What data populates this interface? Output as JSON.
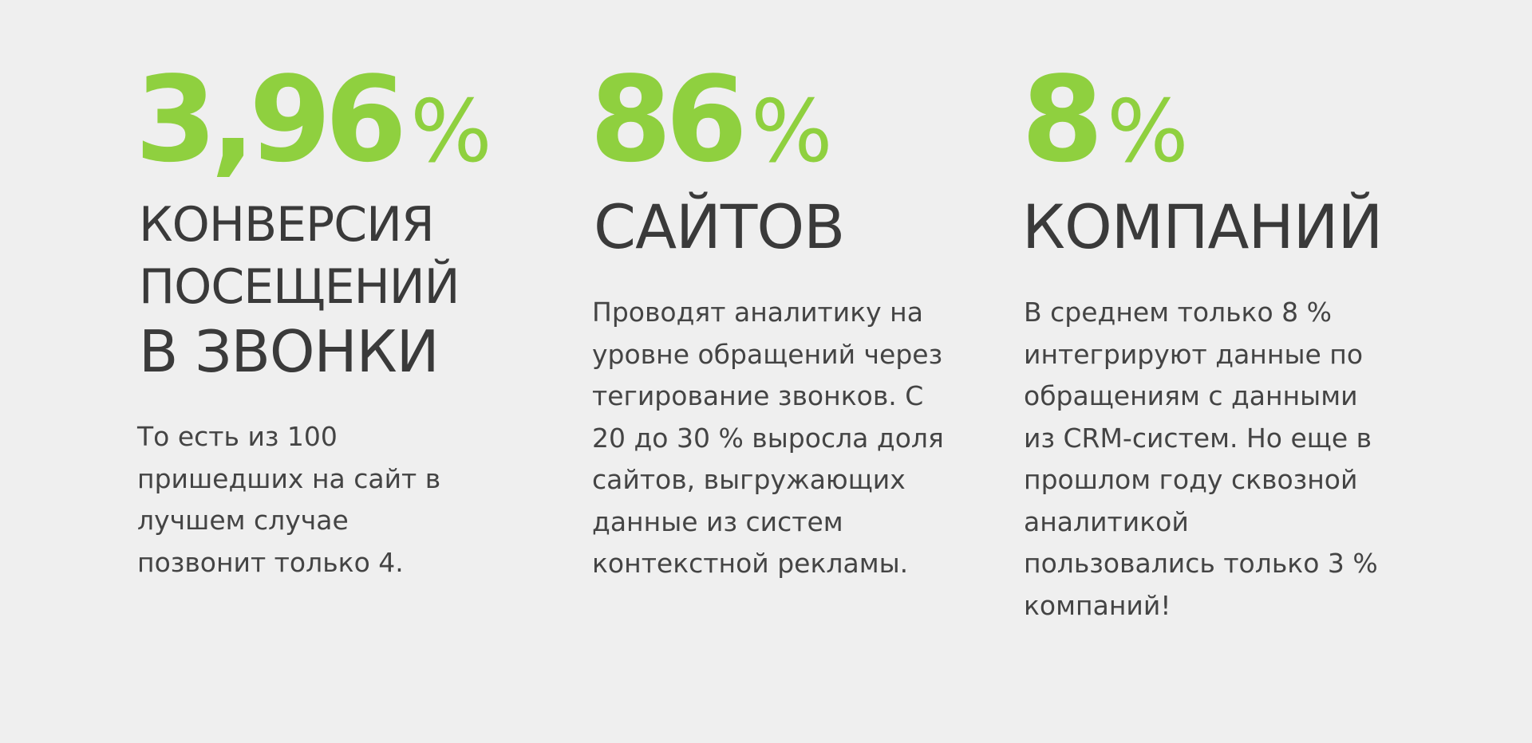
{
  "colors": {
    "background": "#efefef",
    "accent": "#8fd03f",
    "text": "#3d3d3d"
  },
  "stats": [
    {
      "number": "3,96",
      "unit": "%",
      "heading_lines": [
        "КОНВЕРСИЯ",
        "ПОСЕЩЕНИЙ",
        "В ЗВОНКИ"
      ],
      "description": "То есть из 100\nпришедших  на сайт в\nлучшем случае\nпозвонит только 4."
    },
    {
      "number": "86",
      "unit": "%",
      "heading_lines": [
        "САЙТОВ"
      ],
      "description": "Проводят аналитику на\nуровне обращений через\nтегирование звонков. С\n20 до 30 % выросла доля\nсайтов, выгружающих\nданные из систем\nконтекстной рекламы."
    },
    {
      "number": "8",
      "unit": "%",
      "heading_lines": [
        "КОМПАНИЙ"
      ],
      "description": "В среднем только 8 %\nинтегрируют данные по\nобращениям с данными\nиз CRM-систем. Но еще в\nпрошлом году сквозной\nаналитикой\nпользовались только 3 %\nкомпаний!"
    }
  ]
}
